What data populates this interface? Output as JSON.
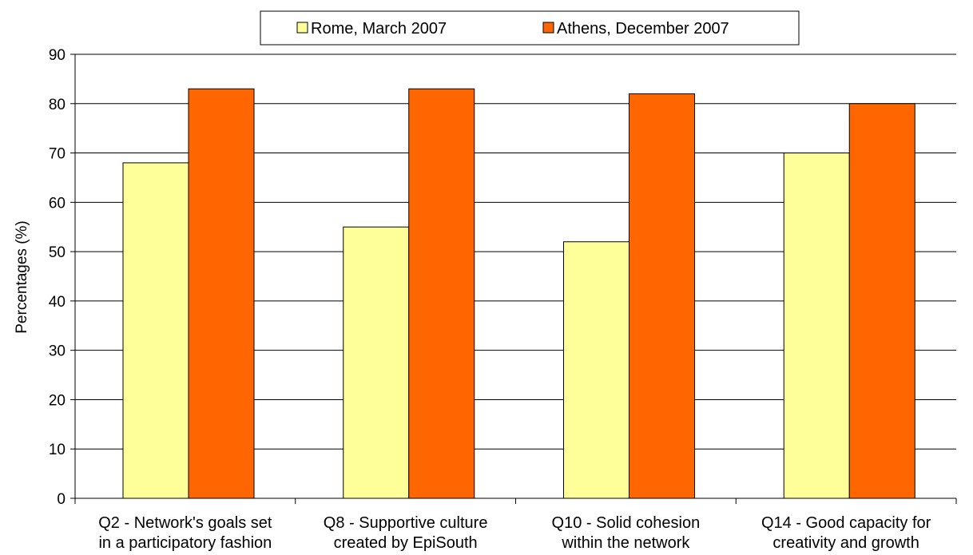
{
  "chart_data": {
    "type": "bar",
    "title": "",
    "xlabel": "",
    "ylabel": "Percentages (%)",
    "ylim": [
      0,
      90
    ],
    "yticks": [
      0,
      10,
      20,
      30,
      40,
      50,
      60,
      70,
      80,
      90
    ],
    "grid": true,
    "legend_position": "top-center",
    "categories": [
      [
        "Q2 - Network's goals set",
        "in a participatory fashion"
      ],
      [
        "Q8 - Supportive culture",
        "created by EpiSouth"
      ],
      [
        "Q10 - Solid cohesion",
        "within the network"
      ],
      [
        "Q14 - Good capacity for",
        "creativity and growth"
      ]
    ],
    "series": [
      {
        "name": "Rome, March 2007",
        "color": "#ffff99",
        "values": [
          68,
          55,
          52,
          70
        ]
      },
      {
        "name": "Athens, December 2007",
        "color": "#ff6600",
        "values": [
          83,
          83,
          82,
          80
        ]
      }
    ]
  }
}
